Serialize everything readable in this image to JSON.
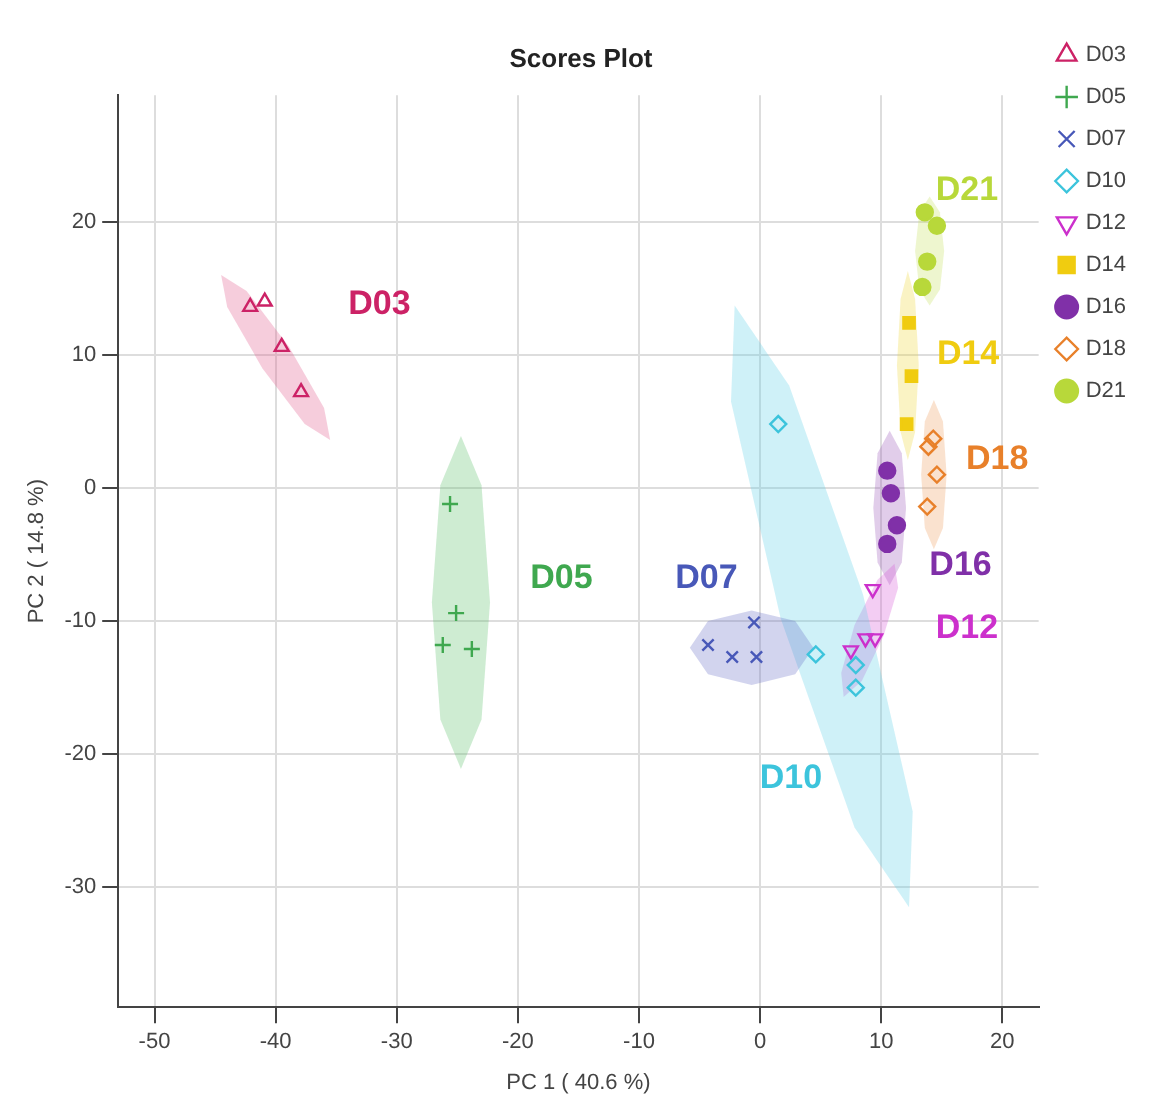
{
  "chart_data": {
    "type": "scatter",
    "title": "Scores Plot",
    "xlabel": "PC 1 ( 40.6 %)",
    "ylabel": "PC 2 ( 14.8 %)",
    "xlim": [
      -53,
      23
    ],
    "ylim": [
      -39,
      29.5
    ],
    "xticks": [
      -50,
      -40,
      -30,
      -20,
      -10,
      0,
      10,
      20
    ],
    "yticks": [
      -30,
      -20,
      -10,
      0,
      10,
      20
    ],
    "grid": true,
    "legend": "right",
    "series": [
      {
        "type": "area",
        "color": "#e05a8a",
        "x": [
          -44.5,
          -42.4,
          -38.9,
          -36.0,
          -35.5,
          -37.6,
          -41.1,
          -44.0
        ],
        "values": [
          16.0,
          14.8,
          10.6,
          6.0,
          3.6,
          4.8,
          9.0,
          13.6
        ]
      },
      {
        "type": "area",
        "color": "#5cbf6a",
        "x": [
          -24.7,
          -23.0,
          -22.3,
          -23.0,
          -24.7,
          -26.4,
          -27.1,
          -26.4
        ],
        "values": [
          3.9,
          0.2,
          -8.6,
          -17.4,
          -21.1,
          -17.4,
          -8.6,
          0.2
        ]
      },
      {
        "type": "area",
        "color": "#6a72c8",
        "x": [
          4.4,
          2.9,
          -0.7,
          -4.3,
          -5.8,
          -4.3,
          -0.7,
          2.9
        ],
        "values": [
          -12.0,
          -10.0,
          -9.2,
          -10.0,
          -12.0,
          -14.0,
          -14.8,
          -14.0
        ]
      },
      {
        "type": "area",
        "color": "#5fd0e8",
        "x": [
          -2.1,
          2.4,
          8.5,
          12.6,
          12.3,
          7.8,
          1.7,
          -2.4
        ],
        "values": [
          13.7,
          7.7,
          -8.0,
          -24.3,
          -31.5,
          -25.5,
          -9.8,
          6.5
        ]
      },
      {
        "type": "area",
        "color": "#d85ad8",
        "x": [
          11.1,
          11.4,
          10.2,
          8.4,
          6.9,
          6.7,
          7.8,
          9.7
        ],
        "values": [
          -5.7,
          -7.5,
          -11.1,
          -14.5,
          -15.7,
          -13.9,
          -10.3,
          -6.9
        ]
      },
      {
        "type": "area",
        "color": "#f0d83a",
        "x": [
          12.2,
          12.8,
          13.1,
          12.8,
          12.2,
          11.6,
          11.3,
          11.6
        ],
        "values": [
          16.3,
          14.2,
          9.2,
          4.2,
          2.1,
          4.2,
          9.2,
          14.2
        ]
      },
      {
        "type": "area",
        "color": "#9a5ab8",
        "x": [
          10.7,
          11.7,
          12.05,
          11.7,
          10.7,
          9.7,
          9.35,
          9.7
        ],
        "values": [
          4.3,
          2.6,
          -1.5,
          -5.6,
          -7.3,
          -5.6,
          -1.5,
          2.6
        ]
      },
      {
        "type": "area",
        "color": "#f0a060",
        "x": [
          14.35,
          15.1,
          15.4,
          15.1,
          14.35,
          13.6,
          13.3,
          13.6
        ],
        "values": [
          6.6,
          5.0,
          1.0,
          -3.0,
          -4.6,
          -3.0,
          1.0,
          5.0
        ]
      },
      {
        "type": "area",
        "color": "#c8e060",
        "x": [
          14.0,
          14.85,
          15.2,
          14.85,
          14.0,
          13.15,
          12.8,
          13.15
        ],
        "values": [
          21.9,
          20.7,
          17.8,
          14.9,
          13.7,
          14.9,
          17.8,
          20.7
        ]
      },
      {
        "name": "D03",
        "color": "#cc2266",
        "marker": "triangle",
        "x": [
          -42.1,
          -40.9,
          -39.5,
          -37.9
        ],
        "values": [
          13.6,
          14.0,
          10.6,
          7.2
        ]
      },
      {
        "name": "D05",
        "color": "#3fa84f",
        "marker": "cross",
        "x": [
          -25.6,
          -25.1,
          -26.2,
          -23.8
        ],
        "values": [
          -1.2,
          -9.4,
          -11.8,
          -12.1
        ]
      },
      {
        "name": "D07",
        "color": "#4858b8",
        "marker": "x",
        "x": [
          -4.3,
          -2.3,
          -0.3,
          -0.5
        ],
        "values": [
          -11.8,
          -12.7,
          -12.7,
          -10.1
        ]
      },
      {
        "name": "D10",
        "color": "#3cc4dc",
        "marker": "diamond",
        "x": [
          1.5,
          4.6,
          7.9,
          7.9
        ],
        "values": [
          4.8,
          -12.5,
          -13.3,
          -15.0
        ]
      },
      {
        "name": "D12",
        "color": "#cc30cc",
        "marker": "triangle-down",
        "x": [
          9.3,
          8.7,
          9.5,
          7.5
        ],
        "values": [
          -7.6,
          -11.3,
          -11.3,
          -12.2
        ]
      },
      {
        "name": "D14",
        "color": "#f0cc10",
        "marker": "square",
        "x": [
          12.3,
          12.5,
          12.1
        ],
        "values": [
          12.4,
          8.4,
          4.8
        ]
      },
      {
        "name": "D16",
        "color": "#8030a8",
        "marker": "circle",
        "x": [
          10.5,
          10.8,
          11.3,
          10.5
        ],
        "values": [
          1.3,
          -0.4,
          -2.8,
          -4.2
        ]
      },
      {
        "name": "D18",
        "color": "#e8802a",
        "marker": "diamond",
        "x": [
          14.3,
          13.9,
          14.6,
          13.8
        ],
        "values": [
          3.7,
          3.1,
          1.0,
          -1.4
        ]
      },
      {
        "name": "D21",
        "color": "#b8d83a",
        "marker": "circle",
        "x": [
          13.6,
          14.6,
          13.8,
          13.4
        ],
        "values": [
          20.7,
          19.7,
          17.0,
          15.1
        ]
      }
    ],
    "annotations": [
      "D03",
      "D05",
      "D07",
      "D10",
      "D12",
      "D14",
      "D16",
      "D18",
      "D21"
    ]
  }
}
